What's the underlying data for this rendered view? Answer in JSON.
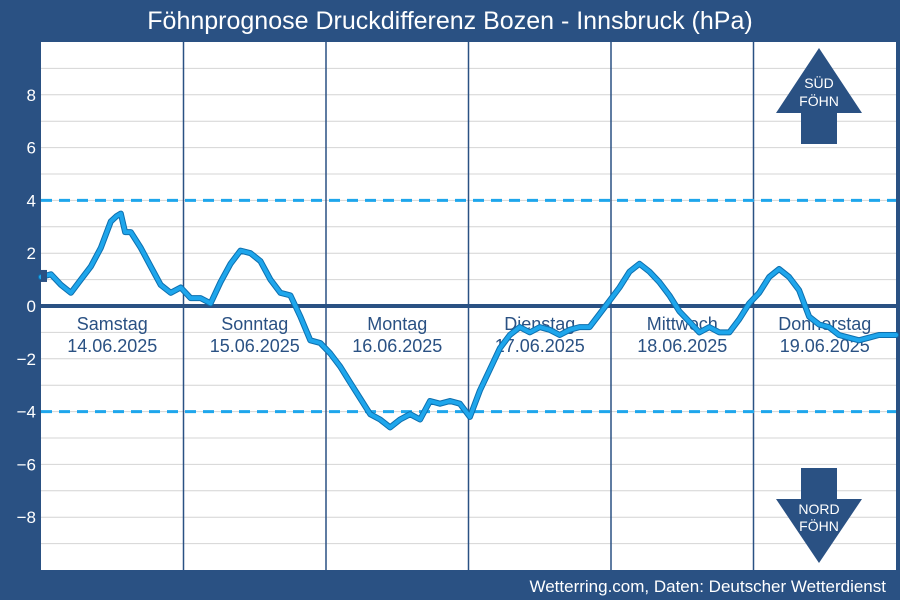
{
  "chart_data": {
    "type": "line",
    "title": "Föhnprognose Druckdifferenz Bozen - Innsbruck (hPa)",
    "source": "Wetterring.com, Daten: Deutscher Wetterdienst",
    "ylim": [
      -10,
      10
    ],
    "yticks": [
      8,
      6,
      4,
      2,
      0,
      -2,
      -4,
      -6,
      -8
    ],
    "ytick_labels": [
      "8",
      "6",
      "4",
      "2",
      "0",
      "−2",
      "−4",
      "−6",
      "−8"
    ],
    "threshold_lines": [
      4,
      -4
    ],
    "xlim_days": [
      0,
      6
    ],
    "grid": true,
    "days": [
      {
        "name": "Samstag",
        "date": "14.06.2025"
      },
      {
        "name": "Sonntag",
        "date": "15.06.2025"
      },
      {
        "name": "Montag",
        "date": "16.06.2025"
      },
      {
        "name": "Dienstag",
        "date": "17.06.2025"
      },
      {
        "name": "Mittwoch",
        "date": "18.06.2025"
      },
      {
        "name": "Donnerstag",
        "date": "19.06.2025"
      }
    ],
    "arrows": {
      "up": [
        "SÜD",
        "FÖHN"
      ],
      "down": [
        "NORD",
        "FÖHN"
      ]
    },
    "colors": {
      "background": "#2a5183",
      "plot": "#ffffff",
      "line": "#1ea6ec",
      "threshold": "#1ea6ec",
      "zero_line": "#2a5183",
      "day_separator": "#2a5183",
      "arrow": "#2a5183"
    },
    "series": [
      {
        "x_days": [
          0.0,
          0.07,
          0.14,
          0.21,
          0.28,
          0.35,
          0.42,
          0.49,
          0.53,
          0.56,
          0.59,
          0.63,
          0.7,
          0.77,
          0.84,
          0.91,
          0.98,
          1.05,
          1.12,
          1.19,
          1.26,
          1.33,
          1.4,
          1.47,
          1.54,
          1.61,
          1.68,
          1.75,
          1.82,
          1.89,
          1.96,
          2.03,
          2.1,
          2.17,
          2.24,
          2.31,
          2.38,
          2.45,
          2.52,
          2.59,
          2.66,
          2.73,
          2.8,
          2.87,
          2.94,
          3.01,
          3.08,
          3.15,
          3.22,
          3.29,
          3.36,
          3.43,
          3.5,
          3.57,
          3.64,
          3.71,
          3.78,
          3.85,
          3.92,
          3.99,
          4.06,
          4.13,
          4.2,
          4.27,
          4.34,
          4.41,
          4.48,
          4.55,
          4.62,
          4.69,
          4.76,
          4.83,
          4.9,
          4.97,
          5.04,
          5.11,
          5.18,
          5.25,
          5.32,
          5.39,
          5.46,
          5.53,
          5.6,
          5.67,
          5.74,
          5.81,
          5.88,
          5.95,
          6.0
        ],
        "values": [
          1.1,
          1.2,
          0.8,
          0.5,
          1.0,
          1.5,
          2.2,
          3.2,
          3.4,
          3.5,
          2.8,
          2.8,
          2.2,
          1.5,
          0.8,
          0.5,
          0.7,
          0.3,
          0.3,
          0.1,
          0.9,
          1.6,
          2.1,
          2.0,
          1.7,
          1.0,
          0.5,
          0.4,
          -0.4,
          -1.3,
          -1.4,
          -1.8,
          -2.3,
          -2.9,
          -3.5,
          -4.1,
          -4.3,
          -4.6,
          -4.3,
          -4.1,
          -4.3,
          -3.6,
          -3.7,
          -3.6,
          -3.7,
          -4.2,
          -3.2,
          -2.4,
          -1.6,
          -1.1,
          -0.8,
          -1.0,
          -0.8,
          -0.9,
          -1.1,
          -0.9,
          -0.8,
          -0.8,
          -0.3,
          0.2,
          0.7,
          1.3,
          1.6,
          1.3,
          0.9,
          0.4,
          -0.2,
          -0.6,
          -1.0,
          -0.8,
          -1.0,
          -1.0,
          -0.5,
          0.1,
          0.5,
          1.1,
          1.4,
          1.1,
          0.6,
          -0.4,
          -0.7,
          -0.8,
          -1.1,
          -1.2,
          -1.3,
          -1.2,
          -1.1,
          -1.1,
          -1.1
        ]
      }
    ]
  }
}
